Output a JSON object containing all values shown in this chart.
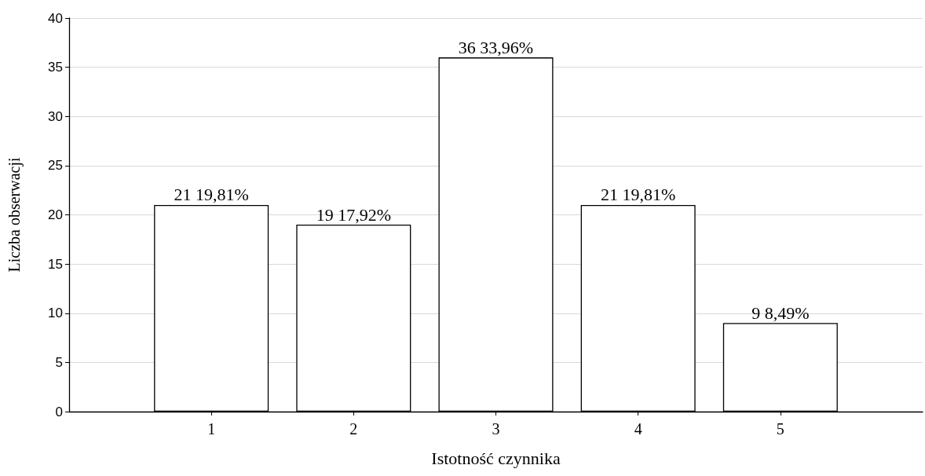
{
  "chart_data": {
    "type": "bar",
    "xlabel": "Istotność czynnika",
    "ylabel": "Liczba obserwacji",
    "categories": [
      null,
      "1",
      "2",
      "3",
      "4",
      "5",
      null
    ],
    "values": [
      null,
      21,
      19,
      36,
      21,
      9,
      null
    ],
    "value_labels": [
      null,
      "21 19,81%",
      "19 17,92%",
      "36 33,96%",
      "21 19,81%",
      "9 8,49%",
      null
    ],
    "color": "#ffffff",
    "ylim": [
      0,
      40
    ],
    "yticks": [
      0,
      5,
      10,
      15,
      20,
      25,
      30,
      35,
      40
    ],
    "grid": "y"
  }
}
